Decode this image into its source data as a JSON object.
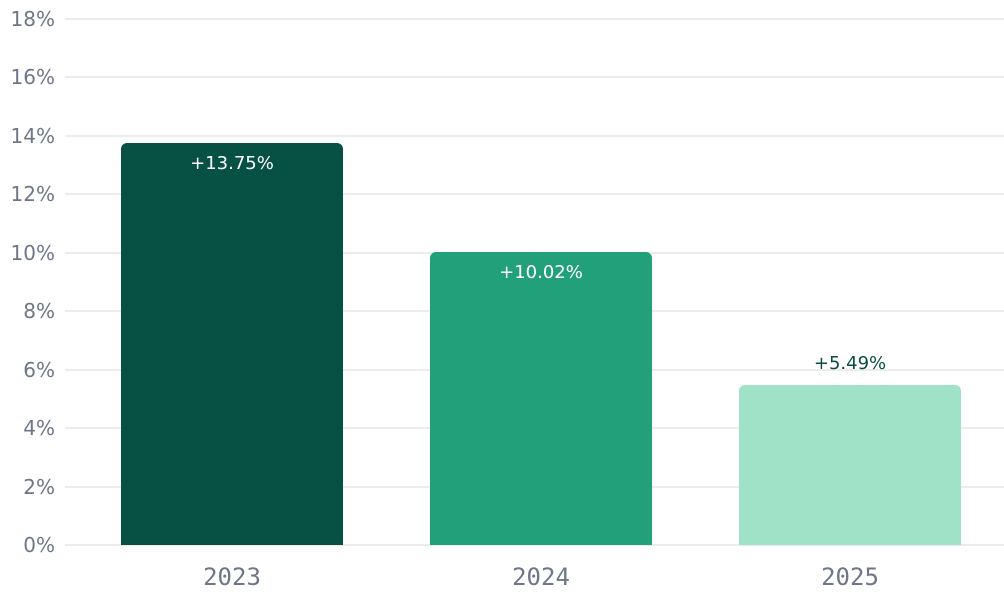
{
  "chart_data": {
    "type": "bar",
    "categories": [
      "2023",
      "2024",
      "2025"
    ],
    "values": [
      13.75,
      10.02,
      5.49
    ],
    "bar_labels": [
      "+13.75%",
      "+10.02%",
      "+5.49%"
    ],
    "bar_colors": [
      "#075144",
      "#22a079",
      "#9fe2c8"
    ],
    "bar_label_colors": [
      "#ffffff",
      "#ffffff",
      "#094d42"
    ],
    "bar_label_position": [
      "inside",
      "inside",
      "outside"
    ],
    "title": "",
    "xlabel": "",
    "ylabel": "",
    "ylim": [
      0,
      18
    ],
    "ytick_step": 2,
    "ytick_labels": [
      "0%",
      "2%",
      "4%",
      "6%",
      "8%",
      "10%",
      "12%",
      "14%",
      "16%",
      "18%"
    ],
    "grid": true,
    "legend": false,
    "colors": {
      "axis_text": "#6e7787",
      "gridline": "#ececee",
      "background": "#ffffff"
    }
  }
}
